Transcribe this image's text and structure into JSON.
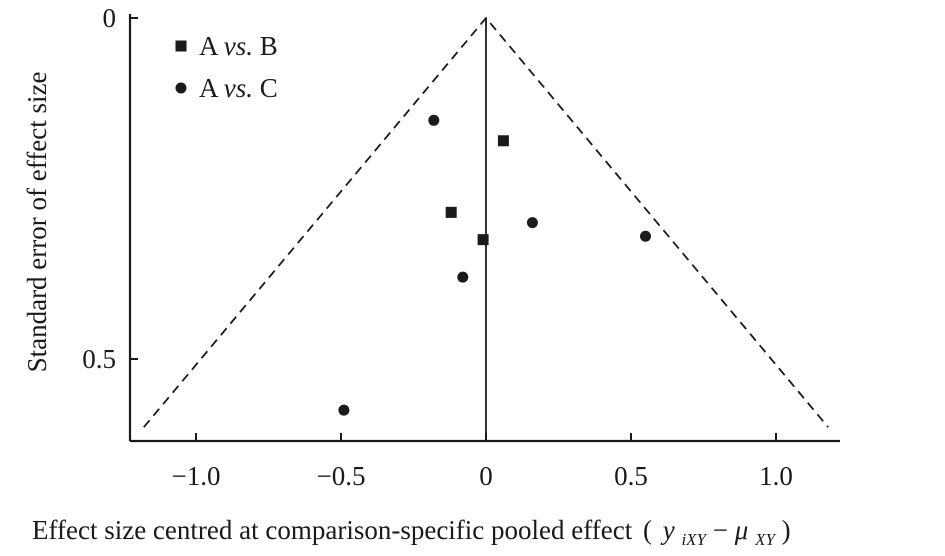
{
  "chart_data": {
    "type": "scatter",
    "chart_subtype": "funnel plot",
    "xlabel": "Effect size centred at comparison-specific pooled effect",
    "xlabel_formula": {
      "open": "(",
      "y": "y",
      "y_sub": "iXY",
      "minus": "−",
      "mu": "μ",
      "mu_sub": "XY",
      "close": ")"
    },
    "ylabel": "Standard error of effect size",
    "xlim": [
      -1.22,
      1.22
    ],
    "ylim": [
      0,
      0.6
    ],
    "y_reversed": true,
    "x_ticks": [
      -1.0,
      -0.5,
      0,
      0.5,
      1.0
    ],
    "x_tick_labels": [
      "−1.0",
      "−0.5",
      "0",
      "0.5",
      "1.0"
    ],
    "y_ticks": [
      0,
      0.5
    ],
    "y_tick_labels": [
      "0",
      "0.5"
    ],
    "grid": false,
    "legend_position": "top-left",
    "reference_line_x": 0,
    "funnel_limits": [
      {
        "x": -1.18,
        "y": 0.6
      },
      {
        "x": 0,
        "y": 0
      },
      {
        "x": 1.18,
        "y": 0.6
      }
    ],
    "series": [
      {
        "name": "A vs. B",
        "name_parts": [
          "A ",
          "vs.",
          " B"
        ],
        "marker": "square",
        "points": [
          {
            "x": 0.06,
            "y": 0.18
          },
          {
            "x": -0.12,
            "y": 0.285
          },
          {
            "x": -0.01,
            "y": 0.325
          }
        ]
      },
      {
        "name": "A vs. C",
        "name_parts": [
          "A ",
          "vs.",
          " C"
        ],
        "marker": "circle",
        "points": [
          {
            "x": -0.18,
            "y": 0.15
          },
          {
            "x": 0.16,
            "y": 0.3
          },
          {
            "x": 0.55,
            "y": 0.32
          },
          {
            "x": -0.08,
            "y": 0.38
          },
          {
            "x": -0.49,
            "y": 0.575
          }
        ]
      }
    ],
    "colors": {
      "ink": "#1a1a1a",
      "background": "#ffffff"
    }
  }
}
